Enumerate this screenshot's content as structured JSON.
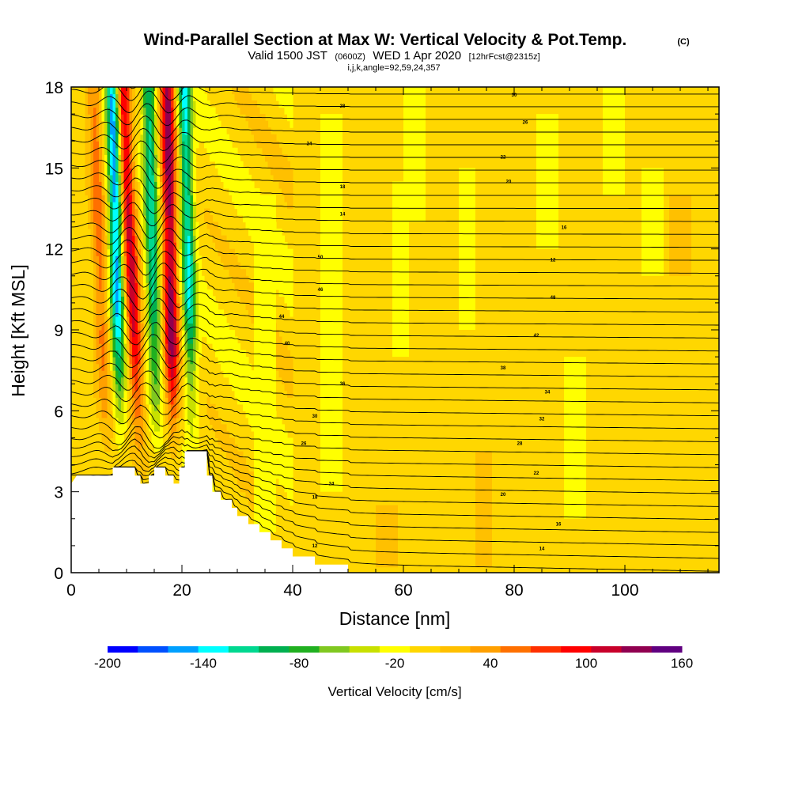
{
  "title": {
    "main": "Wind-Parallel Section at Max W: Vertical Velocity & Pot.Temp.",
    "mark": "(C)",
    "line2_a": "Valid 1500 JST",
    "line2_b": "(0600Z)",
    "line2_c": "WED 1 Apr 2020",
    "line2_d": "[12hrFcst@2315z]",
    "line3": "i,j,k,angle=92,59,24,357"
  },
  "chart_data": {
    "type": "heatmap",
    "xlabel": "Distance [nm]",
    "ylabel": "Height [Kft MSL]",
    "xlim": [
      0,
      117
    ],
    "ylim": [
      0,
      18
    ],
    "x_ticks": [
      0,
      20,
      40,
      60,
      80,
      100
    ],
    "x_tick_labels": [
      "0",
      "20",
      "40",
      "60",
      "80",
      "100"
    ],
    "y_ticks": [
      0,
      3,
      6,
      9,
      12,
      15,
      18
    ],
    "y_tick_labels": [
      "0",
      "3",
      "6",
      "9",
      "12",
      "15",
      "18"
    ],
    "colorbar": {
      "label": "Vertical Velocity [cm/s]",
      "min": -200,
      "max": 160,
      "step": 20,
      "tick_values": [
        -200,
        -140,
        -80,
        -20,
        40,
        100,
        160
      ],
      "tick_labels": [
        "-200",
        "-140",
        "-80",
        "-20",
        "40",
        "100",
        "160"
      ],
      "colors": [
        "#0000ff",
        "#0050ff",
        "#00a0ff",
        "#00ffff",
        "#00d890",
        "#00b050",
        "#20b020",
        "#80c820",
        "#c8e000",
        "#ffff00",
        "#ffd700",
        "#ffc000",
        "#ffa000",
        "#ff7000",
        "#ff3000",
        "#ff0000",
        "#c8002a",
        "#900050",
        "#600080"
      ]
    },
    "background_value": "0 to 20",
    "terrain": [
      [
        0,
        3.3
      ],
      [
        1,
        3.6
      ],
      [
        7.5,
        3.6
      ],
      [
        7.5,
        3.9
      ],
      [
        11.5,
        3.9
      ],
      [
        11.5,
        3.6
      ],
      [
        12.5,
        3.6
      ],
      [
        12.5,
        3.3
      ],
      [
        14,
        3.3
      ],
      [
        14,
        3.6
      ],
      [
        15,
        3.6
      ],
      [
        15,
        3.9
      ],
      [
        17,
        3.9
      ],
      [
        17,
        3.6
      ],
      [
        18.5,
        3.6
      ],
      [
        18.5,
        3.3
      ],
      [
        19.5,
        3.3
      ],
      [
        19.5,
        3.9
      ],
      [
        20.5,
        3.9
      ],
      [
        20.5,
        4.5
      ],
      [
        24.5,
        4.5
      ],
      [
        24.5,
        3.6
      ],
      [
        25.5,
        3.6
      ],
      [
        25.5,
        3.0
      ],
      [
        27,
        3.0
      ],
      [
        27,
        2.7
      ],
      [
        29,
        2.7
      ],
      [
        29,
        2.4
      ],
      [
        30,
        2.4
      ],
      [
        30,
        2.1
      ],
      [
        32,
        2.1
      ],
      [
        32,
        1.8
      ],
      [
        34,
        1.8
      ],
      [
        34,
        1.5
      ],
      [
        36,
        1.5
      ],
      [
        36,
        1.2
      ],
      [
        38,
        1.2
      ],
      [
        38,
        0.9
      ],
      [
        40,
        0.9
      ],
      [
        40,
        0.6
      ],
      [
        44,
        0.6
      ],
      [
        44,
        0.3
      ],
      [
        50,
        0.3
      ],
      [
        50,
        0.0
      ],
      [
        117,
        0.0
      ]
    ],
    "theta_contours_K": [
      12,
      14,
      16,
      18,
      20,
      22,
      24,
      26,
      28,
      30,
      32,
      34,
      36,
      38,
      40,
      42,
      44,
      46,
      48,
      50
    ],
    "updraft_bands": [
      {
        "x_base": 12.5,
        "slope": -0.15,
        "peak_cm_s": 120
      },
      {
        "x_base": 18.5,
        "slope": 0.0,
        "peak_cm_s": 140
      },
      {
        "x_base": 6.5,
        "slope": -0.1,
        "peak_cm_s": 60
      }
    ],
    "downdraft_bands": [
      {
        "x_base": 9.0,
        "slope": -0.02,
        "min_cm_s": -160
      },
      {
        "x_base": 15.5,
        "slope": -0.02,
        "min_cm_s": -120
      },
      {
        "x_base": 22.0,
        "slope": -0.02,
        "min_cm_s": -130
      }
    ]
  }
}
